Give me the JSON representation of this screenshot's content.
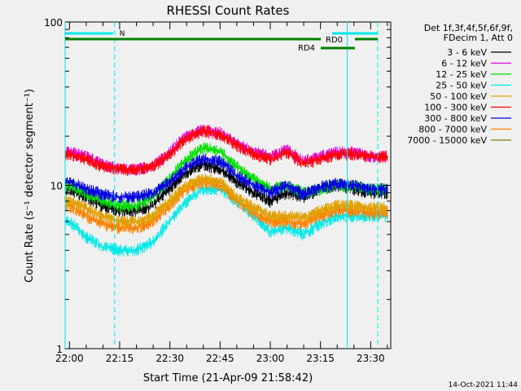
{
  "chart_data": {
    "type": "line",
    "title": "RHESSI Count Rates",
    "xlabel": "Start Time (21-Apr-09 21:58:42)",
    "ylabel": "Count Rate (s⁻¹ detector segment⁻¹)",
    "y_scale": "log",
    "ylim": [
      1,
      100
    ],
    "xlim": [
      "21:58:42",
      "23:36:00"
    ],
    "x_ticks": [
      "22:00",
      "22:15",
      "22:30",
      "22:45",
      "23:00",
      "23:15",
      "23:30"
    ],
    "y_ticks": [
      "1",
      "10",
      "100"
    ],
    "legend_position": "top-right",
    "legend_header": [
      "Det 1f,3f,4f,5f,6f,9f,",
      "FDecim 1, Att 0"
    ],
    "grid": false,
    "series": [
      {
        "name": "3 - 6 keV",
        "color": "#000000",
        "x": [
          "22:00",
          "22:05",
          "22:10",
          "22:15",
          "22:20",
          "22:25",
          "22:30",
          "22:35",
          "22:40",
          "22:45",
          "22:50",
          "22:55",
          "23:00",
          "23:05",
          "23:10",
          "23:15",
          "23:20",
          "23:25",
          "23:30",
          "23:35"
        ],
        "values": [
          9.5,
          8.5,
          7.5,
          7,
          7,
          7.5,
          9.5,
          12,
          13.5,
          12.5,
          10.5,
          9,
          8,
          9,
          8.5,
          9.5,
          10,
          9.5,
          9,
          9
        ]
      },
      {
        "name": "6 - 12 keV",
        "color": "#e000e0",
        "x": [
          "22:00",
          "22:05",
          "22:10",
          "22:15",
          "22:20",
          "22:25",
          "22:30",
          "22:35",
          "22:40",
          "22:45",
          "22:50",
          "22:55",
          "23:00",
          "23:05",
          "23:10",
          "23:15",
          "23:20",
          "23:25",
          "23:30",
          "23:35"
        ],
        "values": [
          16,
          15,
          13.5,
          12.5,
          12.5,
          13,
          16,
          20,
          22,
          21,
          18,
          16,
          15,
          16.5,
          14,
          15,
          16,
          16,
          15,
          15
        ]
      },
      {
        "name": "12 - 25 keV",
        "color": "#00e000",
        "x": [
          "22:00",
          "22:05",
          "22:10",
          "22:15",
          "22:20",
          "22:25",
          "22:30",
          "22:35",
          "22:40",
          "22:45",
          "22:50",
          "22:55",
          "23:00",
          "23:05",
          "23:10",
          "23:15",
          "23:20",
          "23:25",
          "23:30",
          "23:35"
        ],
        "values": [
          10,
          9,
          8,
          7.5,
          7.5,
          8.5,
          11,
          14.5,
          17,
          16,
          13,
          11,
          9.5,
          10,
          9,
          9.5,
          10,
          10,
          9.5,
          9.5
        ]
      },
      {
        "name": "25 - 50 keV",
        "color": "#00e8e8",
        "x": [
          "22:00",
          "22:05",
          "22:10",
          "22:15",
          "22:20",
          "22:25",
          "22:30",
          "22:35",
          "22:40",
          "22:45",
          "22:50",
          "22:55",
          "23:00",
          "23:05",
          "23:10",
          "23:15",
          "23:20",
          "23:25",
          "23:30",
          "23:35"
        ],
        "values": [
          6,
          4.8,
          4.2,
          4,
          4,
          4.5,
          6,
          8,
          9.5,
          9.5,
          8,
          6.5,
          5.2,
          5.5,
          5,
          5.8,
          6.5,
          6.5,
          6.5,
          6.5
        ]
      },
      {
        "name": "50 - 100 keV",
        "color": "#e0a000",
        "x": [
          "22:00",
          "22:05",
          "22:10",
          "22:15",
          "22:20",
          "22:25",
          "22:30",
          "22:35",
          "22:40",
          "22:45",
          "22:50",
          "22:55",
          "23:00",
          "23:05",
          "23:10",
          "23:15",
          "23:20",
          "23:25",
          "23:30",
          "23:35"
        ],
        "values": [
          8,
          7.2,
          6.5,
          6,
          6,
          6.5,
          8,
          10,
          11,
          10.5,
          8.5,
          7.3,
          6.5,
          6.5,
          6.3,
          7,
          7.5,
          7.5,
          7.3,
          7.3
        ]
      },
      {
        "name": "100 - 300 keV",
        "color": "#ff0000",
        "x": [
          "22:00",
          "22:05",
          "22:10",
          "22:15",
          "22:20",
          "22:25",
          "22:30",
          "22:35",
          "22:40",
          "22:45",
          "22:50",
          "22:55",
          "23:00",
          "23:05",
          "23:10",
          "23:15",
          "23:20",
          "23:25",
          "23:30",
          "23:35"
        ],
        "values": [
          15.5,
          14.5,
          13,
          12.5,
          12.5,
          13,
          15.5,
          19.5,
          21.5,
          20.5,
          17.5,
          15.5,
          14.5,
          16,
          13.5,
          14.5,
          15.5,
          15.5,
          15,
          15
        ]
      },
      {
        "name": "300 - 800 keV",
        "color": "#0000e0",
        "x": [
          "22:00",
          "22:05",
          "22:10",
          "22:15",
          "22:20",
          "22:25",
          "22:30",
          "22:35",
          "22:40",
          "22:45",
          "22:50",
          "22:55",
          "23:00",
          "23:05",
          "23:10",
          "23:15",
          "23:20",
          "23:25",
          "23:30",
          "23:35"
        ],
        "values": [
          10.5,
          9.5,
          8.8,
          8.5,
          8.5,
          9,
          10.5,
          13,
          14.5,
          14,
          11.5,
          10,
          9,
          10,
          8.8,
          9.8,
          10.2,
          10,
          9.5,
          9.5
        ]
      },
      {
        "name": "800 - 7000 keV",
        "color": "#ff8000",
        "x": [
          "22:00",
          "22:05",
          "22:10",
          "22:15",
          "22:20",
          "22:25",
          "22:30",
          "22:35",
          "22:40",
          "22:45",
          "22:50",
          "22:55",
          "23:00",
          "23:05",
          "23:10",
          "23:15",
          "23:20",
          "23:25",
          "23:30",
          "23:35"
        ],
        "values": [
          7.5,
          6.5,
          5.8,
          5.5,
          5.5,
          6,
          7.5,
          9.5,
          10.5,
          10,
          8,
          6.8,
          6,
          6,
          5.8,
          6.5,
          7,
          7,
          6.8,
          6.8
        ]
      },
      {
        "name": "7000 - 15000 keV",
        "color": "#808000",
        "x": [],
        "values": []
      }
    ],
    "annotations": {
      "attenuator_night_bar": {
        "label": "N",
        "color": "#00e8e8",
        "start": "21:58:42",
        "end": "22:13:00"
      },
      "attenuator_night_bar_2": {
        "label": "",
        "color": "#00e8e8",
        "start": "23:26:00",
        "end": "23:35:00"
      },
      "rd0_bar": {
        "label": "RD0",
        "color": "#008000",
        "start": "21:58:42",
        "end": "23:36:00",
        "gap_start": "23:18:00",
        "gap_end": "23:30:00"
      },
      "rd4_bar": {
        "label": "RD4",
        "color": "#008000",
        "start": "23:20:00",
        "end": "23:30:00"
      },
      "vertical_lines": [
        {
          "time": "21:58:42",
          "style": "solid",
          "color": "#00e8e8"
        },
        {
          "time": "22:13:30",
          "style": "dashed",
          "color": "#00e8e8"
        },
        {
          "time": "23:23:00",
          "style": "solid",
          "color": "#00e8e8"
        },
        {
          "time": "23:37:00",
          "style": "dashed",
          "color": "#00e8e8"
        }
      ]
    }
  },
  "footer": {
    "timestamp": "14-Oct-2021 11:44"
  }
}
